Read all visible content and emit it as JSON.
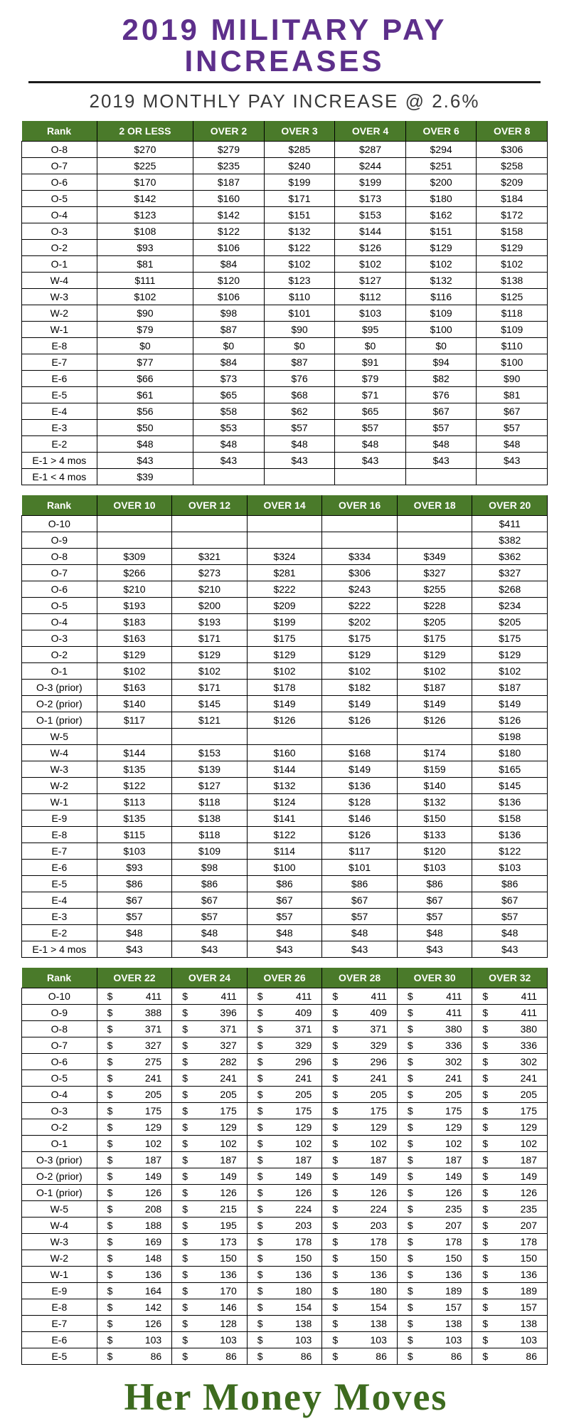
{
  "colors": {
    "title": "#5d2f8b",
    "subtitle": "#3a3a3a",
    "header_bg": "#4a7a2a",
    "header_text": "#ffffff",
    "cell_border": "#000000",
    "hr": "#1a1a1a",
    "footer": "#3d6b1f"
  },
  "typography": {
    "title_fontsize": 42,
    "subtitle_fontsize": 26,
    "table_fontsize": 14,
    "footer_fontsize": 54
  },
  "title_line1": "2019 MILITARY PAY",
  "title_line2": "INCREASES",
  "subtitle": "2019 MONTHLY PAY INCREASE @ 2.6%",
  "footer": "Her Money Moves",
  "rank_label": "Rank",
  "table1": {
    "cell_format": "dollar",
    "columns": [
      "2 OR LESS",
      "OVER 2",
      "OVER 3",
      "OVER 4",
      "OVER 6",
      "OVER 8"
    ],
    "rows": [
      {
        "rank": "O-8",
        "v": [
          "$270",
          "$279",
          "$285",
          "$287",
          "$294",
          "$306"
        ]
      },
      {
        "rank": "O-7",
        "v": [
          "$225",
          "$235",
          "$240",
          "$244",
          "$251",
          "$258"
        ]
      },
      {
        "rank": "O-6",
        "v": [
          "$170",
          "$187",
          "$199",
          "$199",
          "$200",
          "$209"
        ]
      },
      {
        "rank": "O-5",
        "v": [
          "$142",
          "$160",
          "$171",
          "$173",
          "$180",
          "$184"
        ]
      },
      {
        "rank": "O-4",
        "v": [
          "$123",
          "$142",
          "$151",
          "$153",
          "$162",
          "$172"
        ]
      },
      {
        "rank": "O-3",
        "v": [
          "$108",
          "$122",
          "$132",
          "$144",
          "$151",
          "$158"
        ]
      },
      {
        "rank": "O-2",
        "v": [
          "$93",
          "$106",
          "$122",
          "$126",
          "$129",
          "$129"
        ]
      },
      {
        "rank": "O-1",
        "v": [
          "$81",
          "$84",
          "$102",
          "$102",
          "$102",
          "$102"
        ]
      },
      {
        "rank": "W-4",
        "v": [
          "$111",
          "$120",
          "$123",
          "$127",
          "$132",
          "$138"
        ]
      },
      {
        "rank": "W-3",
        "v": [
          "$102",
          "$106",
          "$110",
          "$112",
          "$116",
          "$125"
        ]
      },
      {
        "rank": "W-2",
        "v": [
          "$90",
          "$98",
          "$101",
          "$103",
          "$109",
          "$118"
        ]
      },
      {
        "rank": "W-1",
        "v": [
          "$79",
          "$87",
          "$90",
          "$95",
          "$100",
          "$109"
        ]
      },
      {
        "rank": "E-8",
        "v": [
          "$0",
          "$0",
          "$0",
          "$0",
          "$0",
          "$110"
        ]
      },
      {
        "rank": "E-7",
        "v": [
          "$77",
          "$84",
          "$87",
          "$91",
          "$94",
          "$100"
        ]
      },
      {
        "rank": "E-6",
        "v": [
          "$66",
          "$73",
          "$76",
          "$79",
          "$82",
          "$90"
        ]
      },
      {
        "rank": "E-5",
        "v": [
          "$61",
          "$65",
          "$68",
          "$71",
          "$76",
          "$81"
        ]
      },
      {
        "rank": "E-4",
        "v": [
          "$56",
          "$58",
          "$62",
          "$65",
          "$67",
          "$67"
        ]
      },
      {
        "rank": "E-3",
        "v": [
          "$50",
          "$53",
          "$57",
          "$57",
          "$57",
          "$57"
        ]
      },
      {
        "rank": "E-2",
        "v": [
          "$48",
          "$48",
          "$48",
          "$48",
          "$48",
          "$48"
        ]
      },
      {
        "rank": "E-1 > 4 mos",
        "v": [
          "$43",
          "$43",
          "$43",
          "$43",
          "$43",
          "$43"
        ]
      },
      {
        "rank": "E-1 < 4 mos",
        "v": [
          "$39",
          "",
          "",
          "",
          "",
          ""
        ]
      }
    ]
  },
  "table2": {
    "cell_format": "dollar",
    "columns": [
      "OVER 10",
      "OVER 12",
      "OVER 14",
      "OVER 16",
      "OVER 18",
      "OVER 20"
    ],
    "rows": [
      {
        "rank": "O-10",
        "v": [
          "",
          "",
          "",
          "",
          "",
          "$411"
        ]
      },
      {
        "rank": "O-9",
        "v": [
          "",
          "",
          "",
          "",
          "",
          "$382"
        ]
      },
      {
        "rank": "O-8",
        "v": [
          "$309",
          "$321",
          "$324",
          "$334",
          "$349",
          "$362"
        ]
      },
      {
        "rank": "O-7",
        "v": [
          "$266",
          "$273",
          "$281",
          "$306",
          "$327",
          "$327"
        ]
      },
      {
        "rank": "O-6",
        "v": [
          "$210",
          "$210",
          "$222",
          "$243",
          "$255",
          "$268"
        ]
      },
      {
        "rank": "O-5",
        "v": [
          "$193",
          "$200",
          "$209",
          "$222",
          "$228",
          "$234"
        ]
      },
      {
        "rank": "O-4",
        "v": [
          "$183",
          "$193",
          "$199",
          "$202",
          "$205",
          "$205"
        ]
      },
      {
        "rank": "O-3",
        "v": [
          "$163",
          "$171",
          "$175",
          "$175",
          "$175",
          "$175"
        ]
      },
      {
        "rank": "O-2",
        "v": [
          "$129",
          "$129",
          "$129",
          "$129",
          "$129",
          "$129"
        ]
      },
      {
        "rank": "O-1",
        "v": [
          "$102",
          "$102",
          "$102",
          "$102",
          "$102",
          "$102"
        ]
      },
      {
        "rank": "O-3 (prior)",
        "v": [
          "$163",
          "$171",
          "$178",
          "$182",
          "$187",
          "$187"
        ]
      },
      {
        "rank": "O-2 (prior)",
        "v": [
          "$140",
          "$145",
          "$149",
          "$149",
          "$149",
          "$149"
        ]
      },
      {
        "rank": "O-1 (prior)",
        "v": [
          "$117",
          "$121",
          "$126",
          "$126",
          "$126",
          "$126"
        ]
      },
      {
        "rank": "W-5",
        "v": [
          "",
          "",
          "",
          "",
          "",
          "$198"
        ]
      },
      {
        "rank": "W-4",
        "v": [
          "$144",
          "$153",
          "$160",
          "$168",
          "$174",
          "$180"
        ]
      },
      {
        "rank": "W-3",
        "v": [
          "$135",
          "$139",
          "$144",
          "$149",
          "$159",
          "$165"
        ]
      },
      {
        "rank": "W-2",
        "v": [
          "$122",
          "$127",
          "$132",
          "$136",
          "$140",
          "$145"
        ]
      },
      {
        "rank": "W-1",
        "v": [
          "$113",
          "$118",
          "$124",
          "$128",
          "$132",
          "$136"
        ]
      },
      {
        "rank": "E-9",
        "v": [
          "$135",
          "$138",
          "$141",
          "$146",
          "$150",
          "$158"
        ]
      },
      {
        "rank": "E-8",
        "v": [
          "$115",
          "$118",
          "$122",
          "$126",
          "$133",
          "$136"
        ]
      },
      {
        "rank": "E-7",
        "v": [
          "$103",
          "$109",
          "$114",
          "$117",
          "$120",
          "$122"
        ]
      },
      {
        "rank": "E-6",
        "v": [
          "$93",
          "$98",
          "$100",
          "$101",
          "$103",
          "$103"
        ]
      },
      {
        "rank": "E-5",
        "v": [
          "$86",
          "$86",
          "$86",
          "$86",
          "$86",
          "$86"
        ]
      },
      {
        "rank": "E-4",
        "v": [
          "$67",
          "$67",
          "$67",
          "$67",
          "$67",
          "$67"
        ]
      },
      {
        "rank": "E-3",
        "v": [
          "$57",
          "$57",
          "$57",
          "$57",
          "$57",
          "$57"
        ]
      },
      {
        "rank": "E-2",
        "v": [
          "$48",
          "$48",
          "$48",
          "$48",
          "$48",
          "$48"
        ]
      },
      {
        "rank": "E-1 > 4 mos",
        "v": [
          "$43",
          "$43",
          "$43",
          "$43",
          "$43",
          "$43"
        ]
      }
    ]
  },
  "table3": {
    "cell_format": "accounting",
    "columns": [
      "OVER 22",
      "OVER 24",
      "OVER 26",
      "OVER 28",
      "OVER 30",
      "OVER 32"
    ],
    "rows": [
      {
        "rank": "O-10",
        "v": [
          "411",
          "411",
          "411",
          "411",
          "411",
          "411"
        ]
      },
      {
        "rank": "O-9",
        "v": [
          "388",
          "396",
          "409",
          "409",
          "411",
          "411"
        ]
      },
      {
        "rank": "O-8",
        "v": [
          "371",
          "371",
          "371",
          "371",
          "380",
          "380"
        ]
      },
      {
        "rank": "O-7",
        "v": [
          "327",
          "327",
          "329",
          "329",
          "336",
          "336"
        ]
      },
      {
        "rank": "O-6",
        "v": [
          "275",
          "282",
          "296",
          "296",
          "302",
          "302"
        ]
      },
      {
        "rank": "O-5",
        "v": [
          "241",
          "241",
          "241",
          "241",
          "241",
          "241"
        ]
      },
      {
        "rank": "O-4",
        "v": [
          "205",
          "205",
          "205",
          "205",
          "205",
          "205"
        ]
      },
      {
        "rank": "O-3",
        "v": [
          "175",
          "175",
          "175",
          "175",
          "175",
          "175"
        ]
      },
      {
        "rank": "O-2",
        "v": [
          "129",
          "129",
          "129",
          "129",
          "129",
          "129"
        ]
      },
      {
        "rank": "O-1",
        "v": [
          "102",
          "102",
          "102",
          "102",
          "102",
          "102"
        ]
      },
      {
        "rank": "O-3 (prior)",
        "v": [
          "187",
          "187",
          "187",
          "187",
          "187",
          "187"
        ]
      },
      {
        "rank": "O-2 (prior)",
        "v": [
          "149",
          "149",
          "149",
          "149",
          "149",
          "149"
        ]
      },
      {
        "rank": "O-1 (prior)",
        "v": [
          "126",
          "126",
          "126",
          "126",
          "126",
          "126"
        ]
      },
      {
        "rank": "W-5",
        "v": [
          "208",
          "215",
          "224",
          "224",
          "235",
          "235"
        ]
      },
      {
        "rank": "W-4",
        "v": [
          "188",
          "195",
          "203",
          "203",
          "207",
          "207"
        ]
      },
      {
        "rank": "W-3",
        "v": [
          "169",
          "173",
          "178",
          "178",
          "178",
          "178"
        ]
      },
      {
        "rank": "W-2",
        "v": [
          "148",
          "150",
          "150",
          "150",
          "150",
          "150"
        ]
      },
      {
        "rank": "W-1",
        "v": [
          "136",
          "136",
          "136",
          "136",
          "136",
          "136"
        ]
      },
      {
        "rank": "E-9",
        "v": [
          "164",
          "170",
          "180",
          "180",
          "189",
          "189"
        ]
      },
      {
        "rank": "E-8",
        "v": [
          "142",
          "146",
          "154",
          "154",
          "157",
          "157"
        ]
      },
      {
        "rank": "E-7",
        "v": [
          "126",
          "128",
          "138",
          "138",
          "138",
          "138"
        ]
      },
      {
        "rank": "E-6",
        "v": [
          "103",
          "103",
          "103",
          "103",
          "103",
          "103"
        ]
      },
      {
        "rank": "E-5",
        "v": [
          "86",
          "86",
          "86",
          "86",
          "86",
          "86"
        ]
      }
    ]
  }
}
